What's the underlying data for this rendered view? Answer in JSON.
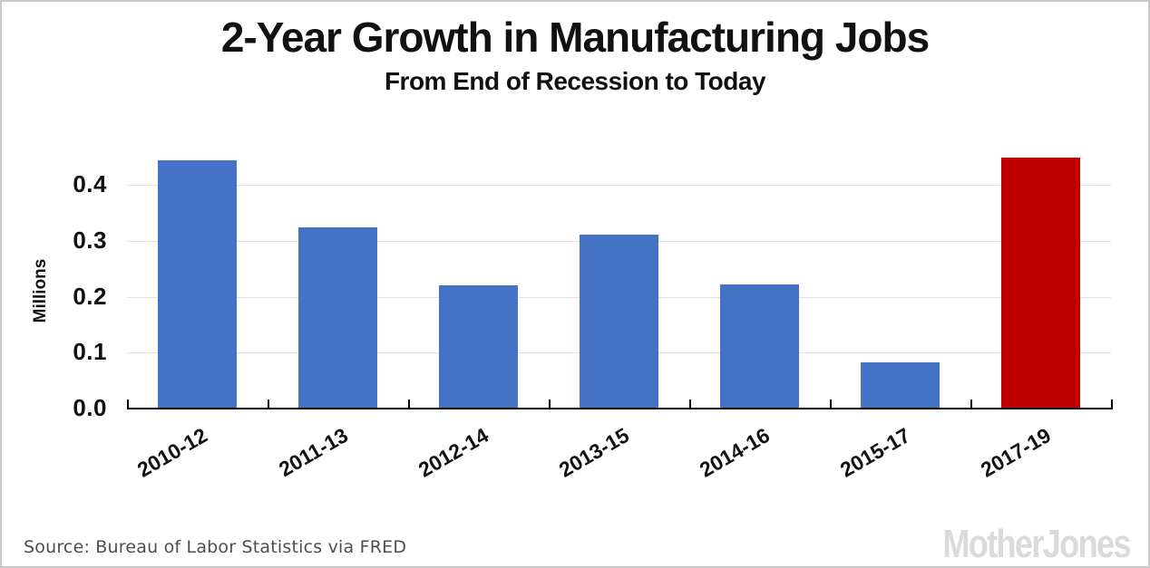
{
  "header": {
    "title": "2-Year Growth in Manufacturing Jobs",
    "subtitle": "From End of Recession to Today"
  },
  "footer": {
    "source": "Source: Bureau of Labor Statistics via FRED",
    "brand": "MotherJones"
  },
  "chart_data": {
    "type": "bar",
    "title": "2-Year Growth in Manufacturing Jobs",
    "subtitle": "From End of Recession to Today",
    "categories": [
      "2010-12",
      "2011-13",
      "2012-14",
      "2013-15",
      "2014-16",
      "2015-17",
      "2017-19"
    ],
    "values": [
      0.444,
      0.324,
      0.22,
      0.311,
      0.222,
      0.082,
      0.449
    ],
    "bar_colors": [
      "#4472C4",
      "#4472C4",
      "#4472C4",
      "#4472C4",
      "#4472C4",
      "#4472C4",
      "#C00000"
    ],
    "bar_color_default": "#4472C4",
    "highlight_color": "#C00000",
    "highlighted_category": "2017-19",
    "ylabel": "Millions",
    "xlabel": "",
    "yticks": [
      0.0,
      0.1,
      0.2,
      0.3,
      0.4
    ],
    "ytick_labels": [
      "0.0",
      "0.1",
      "0.2",
      "0.3",
      "0.4"
    ],
    "ylim": [
      0,
      0.468
    ],
    "grid": true,
    "gridline_color": "#e2e2e2",
    "legend": "none"
  }
}
